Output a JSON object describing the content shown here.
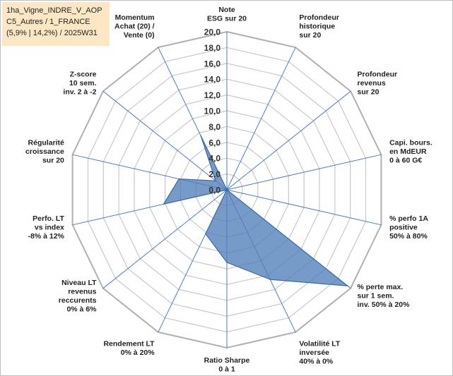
{
  "title_lines": [
    "1ha_Vigne_INDRE_V_AOP",
    "C5_Autres / 1_FRANCE",
    "(5,9% | 14,2%) / 2025W31"
  ],
  "colors": {
    "fill": "#4f7fb8",
    "stroke": "#3d6aa8",
    "grid": "#c8c8c8",
    "spoke": "#4a7cc4",
    "title_bg": "#fce7c4"
  },
  "chart_data": {
    "type": "radar",
    "title": "",
    "range": [
      0,
      20
    ],
    "tick_step": 2,
    "tick_labels": [
      "0,0",
      "2,0",
      "4,0",
      "6,0",
      "8,0",
      "10,0",
      "12,0",
      "14,0",
      "16,0",
      "18,0",
      "20,0"
    ],
    "grid": true,
    "axes": [
      [
        "Note",
        "ESG sur 20"
      ],
      [
        "Profondeur",
        "historique",
        "sur 20"
      ],
      [
        "Profondeur",
        "revenus",
        "sur 20"
      ],
      [
        "Capi. bours.",
        "en MdEUR",
        "0 à 60 G€"
      ],
      [
        "% perfo 1A",
        "positive",
        "50% à 80%"
      ],
      [
        "% perte max.",
        "sur 1 sem.",
        "inv. 50% à 20%"
      ],
      [
        "Volatilité LT",
        "inversée",
        "40% à 0%"
      ],
      [
        "Ratio Sharpe",
        "0 à 1"
      ],
      [
        "Rendement LT",
        "0% à 20%"
      ],
      [
        "Niveau LT",
        "revenus",
        "reccurents",
        "0% à 6%"
      ],
      [
        "Perfo. LT",
        "vs index",
        "-8% à 12%"
      ],
      [
        "Régularité",
        "croissance",
        "sur 20"
      ],
      [
        "Z-score",
        "10 sem.",
        "inv. 2 à -2"
      ],
      [
        "Momentum",
        "Achat (20) /",
        "Vente (0)"
      ]
    ],
    "values": [
      0,
      0,
      0,
      0,
      0,
      19.5,
      12.6,
      9.2,
      6.2,
      0,
      8.2,
      6.2,
      1.8,
      7.6
    ]
  }
}
